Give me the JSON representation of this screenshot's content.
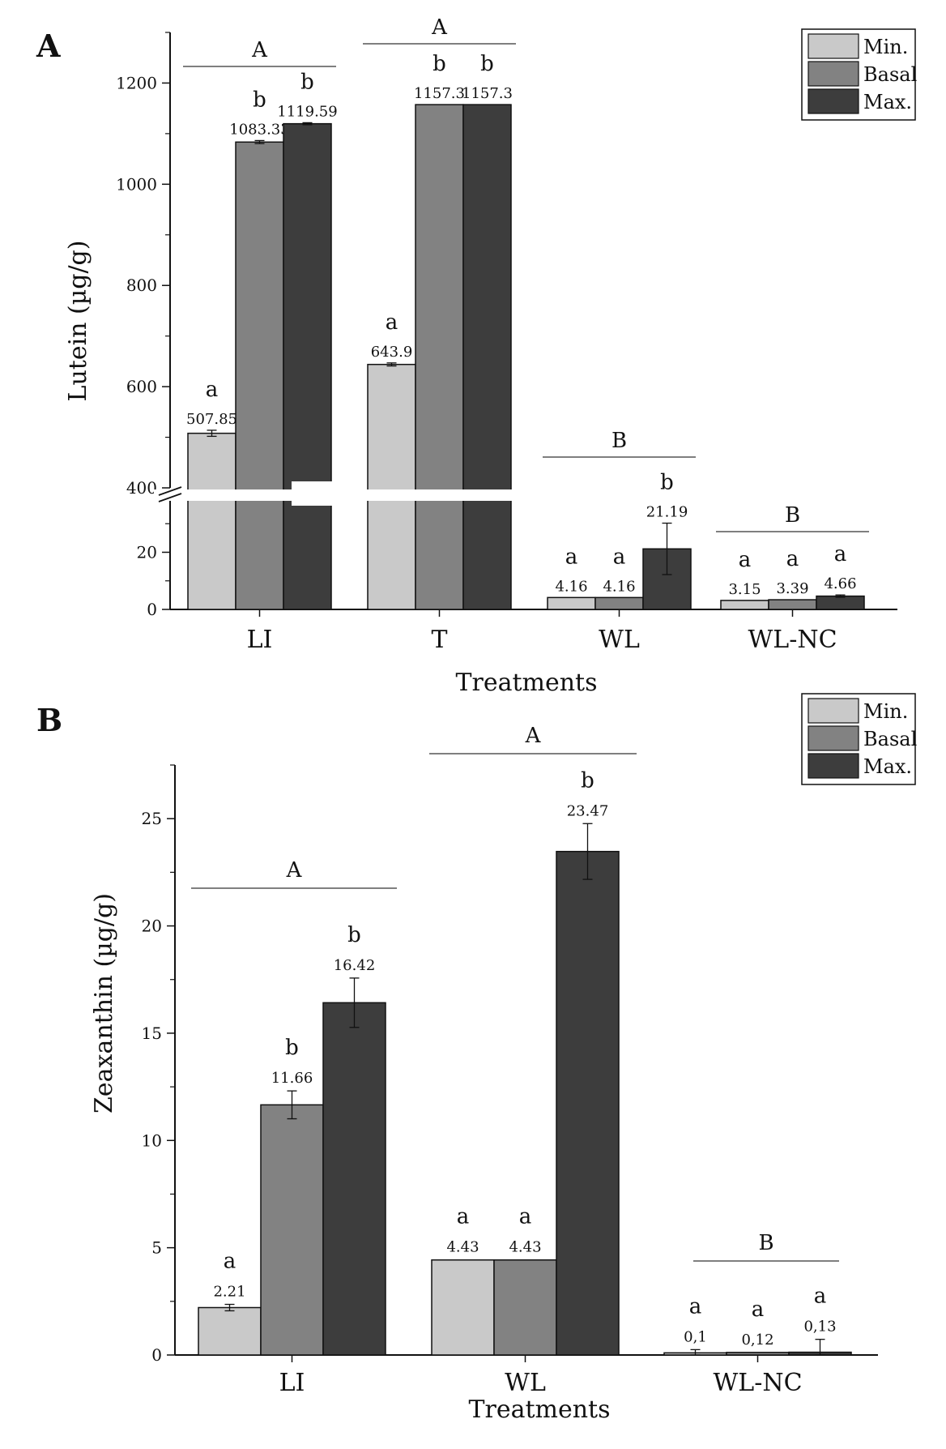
{
  "colors": {
    "min": "#c9c9c9",
    "basal": "#828282",
    "max": "#3d3d3d",
    "axis": "#111111"
  },
  "legend": [
    {
      "key": "min",
      "label": "Min."
    },
    {
      "key": "basal",
      "label": "Basal"
    },
    {
      "key": "max",
      "label": "Max."
    }
  ],
  "chart_data": [
    {
      "panel": "A",
      "type": "bar",
      "xlabel": "Treatments",
      "ylabel": "Lutein (µg/g)",
      "ylim_lower": [
        0,
        38
      ],
      "ylim_upper": [
        400,
        1300
      ],
      "axis_break": true,
      "yticks_lower": [
        0,
        20
      ],
      "yticks_upper": [
        400,
        600,
        800,
        1000,
        1200
      ],
      "categories": [
        "LI",
        "T",
        "WL",
        "WL-NC"
      ],
      "series": [
        {
          "name": "Min.",
          "key": "min",
          "values": [
            507.85,
            643.9,
            4.16,
            3.15
          ],
          "errors": [
            6,
            3,
            0,
            0
          ],
          "labels": [
            "507.85",
            "643.9",
            "4.16",
            "3.15"
          ],
          "letters": [
            "a",
            "a",
            "a",
            "a"
          ]
        },
        {
          "name": "Basal",
          "key": "basal",
          "values": [
            1083.33,
            1157.3,
            4.16,
            3.39
          ],
          "errors": [
            3,
            0,
            0,
            0
          ],
          "labels": [
            "1083.33",
            "1157.3",
            "4.16",
            "3.39"
          ],
          "letters": [
            "b",
            "b",
            "a",
            "a"
          ]
        },
        {
          "name": "Max.",
          "key": "max",
          "values": [
            1119.59,
            1157.3,
            21.19,
            4.66
          ],
          "errors": [
            2,
            0,
            9,
            0.4
          ],
          "labels": [
            "1119.59",
            "1157.3",
            "21.19",
            "4.66"
          ],
          "letters": [
            "b",
            "b",
            "b",
            "a"
          ]
        }
      ],
      "group_letters": [
        "A",
        "A",
        "B",
        "B"
      ]
    },
    {
      "panel": "B",
      "type": "bar",
      "xlabel": "Treatments",
      "ylabel": "Zeaxanthin (µg/g)",
      "ylim": [
        0,
        27.5
      ],
      "yticks": [
        0,
        5,
        10,
        15,
        20,
        25
      ],
      "categories": [
        "LI",
        "WL",
        "WL-NC"
      ],
      "series": [
        {
          "name": "Min.",
          "key": "min",
          "values": [
            2.21,
            4.43,
            0.1
          ],
          "errors": [
            0.15,
            0,
            0.15
          ],
          "labels": [
            "2.21",
            "4.43",
            "0,1"
          ],
          "letters": [
            "a",
            "a",
            "a"
          ]
        },
        {
          "name": "Basal",
          "key": "basal",
          "values": [
            11.66,
            4.43,
            0.12
          ],
          "errors": [
            0.65,
            0,
            0
          ],
          "labels": [
            "11.66",
            "4.43",
            "0,12"
          ],
          "letters": [
            "b",
            "a",
            "a"
          ]
        },
        {
          "name": "Max.",
          "key": "max",
          "values": [
            16.42,
            23.47,
            0.13
          ],
          "errors": [
            1.15,
            1.3,
            0.6
          ],
          "labels": [
            "16.42",
            "23.47",
            "0,13"
          ],
          "letters": [
            "b",
            "b",
            "a"
          ]
        }
      ],
      "group_letters": [
        "A",
        "A",
        "B"
      ]
    }
  ]
}
